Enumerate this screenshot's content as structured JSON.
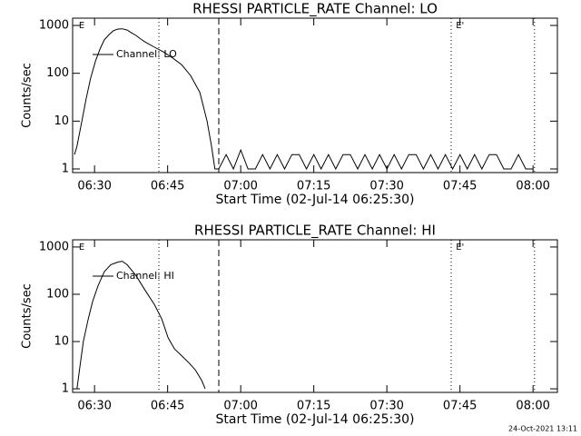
{
  "chart_data": [
    {
      "type": "line",
      "title": "RHESSI PARTICLE_RATE Channel: LO",
      "xlabel": "Start Time (02-Jul-14 06:25:30)",
      "ylabel": "Counts/sec",
      "series": [
        {
          "name": "Channel: LO",
          "color": "#000000",
          "x": [
            0.4,
            0.9,
            1.9,
            2.8,
            3.7,
            4.7,
            5.6,
            6.5,
            7.5,
            8.4,
            9.3,
            10.2,
            11.2,
            12.1,
            13.0,
            14.0,
            14.9,
            16.8,
            18.6,
            20.5,
            22.4,
            24.2,
            26.1,
            27.6,
            28.5,
            29.2,
            30,
            31.5,
            33,
            34.5,
            36,
            37.5,
            39,
            40.5,
            42,
            43.5,
            45,
            46.5,
            48,
            49.5,
            51,
            52.5,
            54,
            55.5,
            57,
            58.5,
            60,
            61.5,
            63,
            64.5,
            66,
            67.5,
            69,
            70.5,
            72,
            73.5,
            75,
            76.5,
            78,
            79.5,
            81,
            82.5,
            84,
            85.5,
            87,
            88.5,
            90,
            91.5,
            93,
            94.5
          ],
          "values": [
            2,
            3,
            10,
            30,
            80,
            180,
            320,
            500,
            650,
            780,
            840,
            850,
            800,
            700,
            620,
            520,
            450,
            350,
            280,
            210,
            150,
            90,
            40,
            10,
            3,
            1,
            1,
            2,
            1,
            2.5,
            1,
            1,
            2,
            1,
            2,
            1,
            2,
            2,
            1,
            2,
            1,
            2,
            1,
            2,
            2,
            1,
            2,
            1,
            2,
            1,
            2,
            1,
            2,
            2,
            1,
            2,
            1,
            2,
            1,
            2,
            1,
            2,
            1,
            2,
            2,
            1,
            1,
            2,
            1,
            1
          ]
        }
      ],
      "xlim": [
        0,
        99.5
      ],
      "xticks": [
        {
          "value": 4.5,
          "label": "06:30"
        },
        {
          "value": 19.5,
          "label": "06:45"
        },
        {
          "value": 34.5,
          "label": "07:00"
        },
        {
          "value": 49.5,
          "label": "07:15"
        },
        {
          "value": 64.5,
          "label": "07:30"
        },
        {
          "value": 79.5,
          "label": "07:45"
        },
        {
          "value": 94.5,
          "label": "08:00"
        }
      ],
      "ylim": [
        0.84,
        1420
      ],
      "yticks": [
        1,
        10,
        100,
        1000
      ],
      "yscale": "log",
      "markers": [
        {
          "x": 17.7,
          "style": "dotted"
        },
        {
          "x": 30.0,
          "style": "dashed"
        },
        {
          "x": 77.7,
          "style": "dotted"
        },
        {
          "x": 94.8,
          "style": "dotted"
        }
      ],
      "annotations": [
        {
          "text": "E",
          "x": 0.9
        },
        {
          "text": "E'",
          "x": 78.3
        }
      ]
    },
    {
      "type": "line",
      "title": "RHESSI PARTICLE_RATE Channel: HI",
      "xlabel": "Start Time (02-Jul-14 06:25:30)",
      "ylabel": "Counts/sec",
      "series": [
        {
          "name": "Channel: HI",
          "color": "#000000",
          "x": [
            0.9,
            1.5,
            2.2,
            3.2,
            4.1,
            5.2,
            6.5,
            7.8,
            9.3,
            10.2,
            11.2,
            13.0,
            14.9,
            16.8,
            18.3,
            19.6,
            20.9,
            22.4,
            23.9,
            25.2,
            26.5,
            27.2
          ],
          "values": [
            1,
            3,
            10,
            30,
            70,
            150,
            300,
            420,
            480,
            500,
            420,
            250,
            120,
            60,
            30,
            12,
            7,
            5,
            3.5,
            2.5,
            1.5,
            1
          ]
        }
      ],
      "xlim": [
        0,
        99.5
      ],
      "xticks": [
        {
          "value": 4.5,
          "label": "06:30"
        },
        {
          "value": 19.5,
          "label": "06:45"
        },
        {
          "value": 34.5,
          "label": "07:00"
        },
        {
          "value": 49.5,
          "label": "07:15"
        },
        {
          "value": 64.5,
          "label": "07:30"
        },
        {
          "value": 79.5,
          "label": "07:45"
        },
        {
          "value": 94.5,
          "label": "08:00"
        }
      ],
      "ylim": [
        0.84,
        1420
      ],
      "yticks": [
        1,
        10,
        100,
        1000
      ],
      "yscale": "log",
      "markers": [
        {
          "x": 17.7,
          "style": "dotted"
        },
        {
          "x": 30.0,
          "style": "dashed"
        },
        {
          "x": 77.7,
          "style": "dotted"
        },
        {
          "x": 94.8,
          "style": "dotted"
        }
      ],
      "annotations": [
        {
          "text": "E",
          "x": 0.9
        },
        {
          "text": "E'",
          "x": 78.3
        }
      ]
    }
  ],
  "footer": "24-Oct-2021 13:11"
}
